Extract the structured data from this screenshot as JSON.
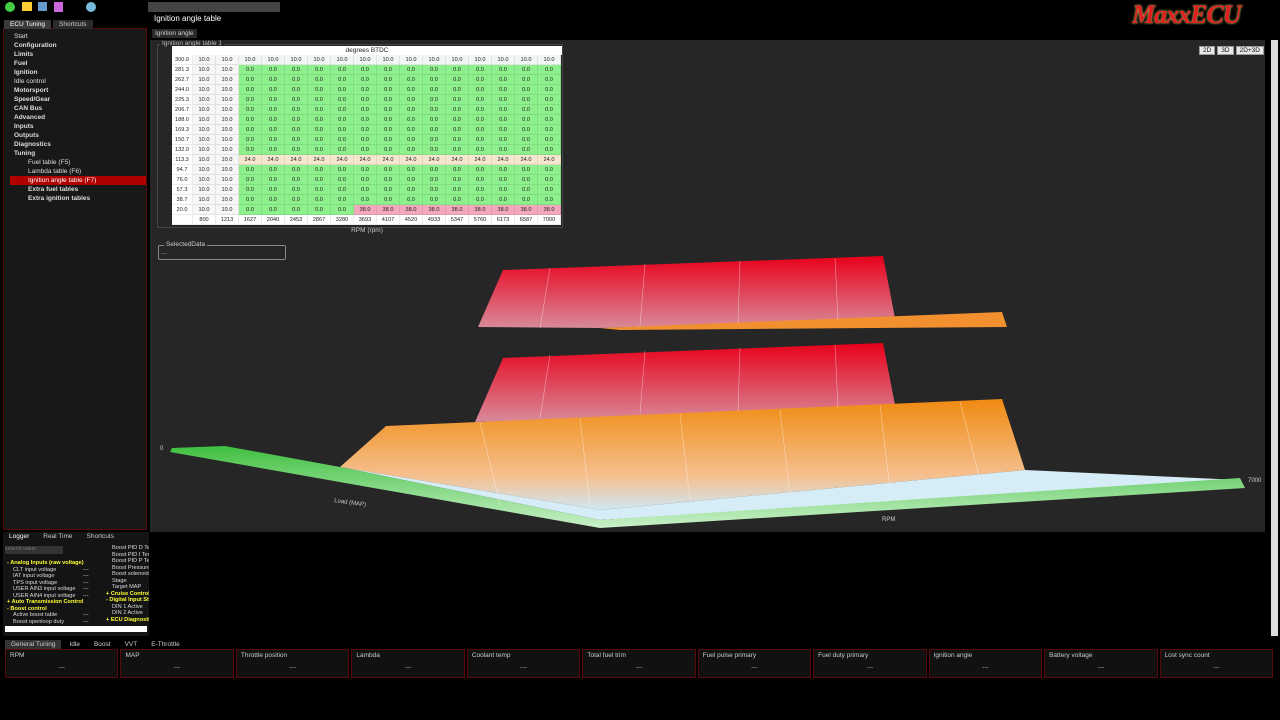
{
  "app": {
    "logo": "MaxxECU",
    "window_title": "Ignition angle table"
  },
  "left_tabs": [
    "ECU Tuning",
    "Shortcuts"
  ],
  "tree": [
    {
      "label": "Start",
      "level": 0,
      "bold": false
    },
    {
      "label": "Configuration",
      "level": 0,
      "bold": true
    },
    {
      "label": "Limits",
      "level": 0,
      "bold": true
    },
    {
      "label": "Fuel",
      "level": 0,
      "bold": true
    },
    {
      "label": "Ignition",
      "level": 0,
      "bold": true
    },
    {
      "label": "Idle control",
      "level": 0,
      "bold": false
    },
    {
      "label": "Motorsport",
      "level": 0,
      "bold": true
    },
    {
      "label": "Speed/Gear",
      "level": 0,
      "bold": true
    },
    {
      "label": "CAN Bus",
      "level": 0,
      "bold": true
    },
    {
      "label": "Advanced",
      "level": 0,
      "bold": true
    },
    {
      "label": "Inputs",
      "level": 0,
      "bold": true
    },
    {
      "label": "Outputs",
      "level": 0,
      "bold": true
    },
    {
      "label": "Diagnostics",
      "level": 0,
      "bold": true
    },
    {
      "label": "Tuning",
      "level": 0,
      "bold": true
    },
    {
      "label": "Fuel table (F5)",
      "level": 1,
      "bold": false
    },
    {
      "label": "Lambda table (F6)",
      "level": 1,
      "bold": false
    },
    {
      "label": "Ignition angle table (F7)",
      "level": 1,
      "bold": false,
      "selected": true
    },
    {
      "label": "Extra fuel tables",
      "level": 1,
      "bold": true
    },
    {
      "label": "Extra ignition tables",
      "level": 1,
      "bold": true
    }
  ],
  "main_tab": "Ignition angle",
  "group_title": "Ignition angle table 1",
  "view_buttons": [
    "2D",
    "3D",
    "2D+3D"
  ],
  "table": {
    "title": "degrees BTDC",
    "x_label": "RPM (rpm)",
    "columns": [
      "800",
      "1213",
      "1627",
      "2040",
      "2453",
      "2867",
      "3280",
      "3693",
      "4107",
      "4520",
      "4933",
      "5347",
      "5760",
      "6173",
      "6587",
      "7000"
    ],
    "rows": [
      {
        "load": "300.0",
        "values": [
          "10.0",
          "10.0",
          "10.0",
          "10.0",
          "10.0",
          "10.0",
          "10.0",
          "10.0",
          "10.0",
          "10.0",
          "10.0",
          "10.0",
          "10.0",
          "10.0",
          "10.0",
          "10.0"
        ]
      },
      {
        "load": "281.3",
        "values": [
          "10.0",
          "10.0",
          "0.0",
          "0.0",
          "0.0",
          "0.0",
          "0.0",
          "0.0",
          "0.0",
          "0.0",
          "0.0",
          "0.0",
          "0.0",
          "0.0",
          "0.0",
          "0.0"
        ]
      },
      {
        "load": "262.7",
        "values": [
          "10.0",
          "10.0",
          "0.0",
          "0.0",
          "0.0",
          "0.0",
          "0.0",
          "0.0",
          "0.0",
          "0.0",
          "0.0",
          "0.0",
          "0.0",
          "0.0",
          "0.0",
          "0.0"
        ]
      },
      {
        "load": "244.0",
        "values": [
          "10.0",
          "10.0",
          "0.0",
          "0.0",
          "0.0",
          "0.0",
          "0.0",
          "0.0",
          "0.0",
          "0.0",
          "0.0",
          "0.0",
          "0.0",
          "0.0",
          "0.0",
          "0.0"
        ]
      },
      {
        "load": "225.3",
        "values": [
          "10.0",
          "10.0",
          "0.0",
          "0.0",
          "0.0",
          "0.0",
          "0.0",
          "0.0",
          "0.0",
          "0.0",
          "0.0",
          "0.0",
          "0.0",
          "0.0",
          "0.0",
          "0.0"
        ]
      },
      {
        "load": "206.7",
        "values": [
          "10.0",
          "10.0",
          "0.0",
          "0.0",
          "0.0",
          "0.0",
          "0.0",
          "0.0",
          "0.0",
          "0.0",
          "0.0",
          "0.0",
          "0.0",
          "0.0",
          "0.0",
          "0.0"
        ]
      },
      {
        "load": "188.0",
        "values": [
          "10.0",
          "10.0",
          "0.0",
          "0.0",
          "0.0",
          "0.0",
          "0.0",
          "0.0",
          "0.0",
          "0.0",
          "0.0",
          "0.0",
          "0.0",
          "0.0",
          "0.0",
          "0.0"
        ]
      },
      {
        "load": "169.3",
        "values": [
          "10.0",
          "10.0",
          "0.0",
          "0.0",
          "0.0",
          "0.0",
          "0.0",
          "0.0",
          "0.0",
          "0.0",
          "0.0",
          "0.0",
          "0.0",
          "0.0",
          "0.0",
          "0.0"
        ]
      },
      {
        "load": "150.7",
        "values": [
          "10.0",
          "10.0",
          "0.0",
          "0.0",
          "0.0",
          "0.0",
          "0.0",
          "0.0",
          "0.0",
          "0.0",
          "0.0",
          "0.0",
          "0.0",
          "0.0",
          "0.0",
          "0.0"
        ]
      },
      {
        "load": "132.0",
        "values": [
          "10.0",
          "10.0",
          "0.0",
          "0.0",
          "0.0",
          "0.0",
          "0.0",
          "0.0",
          "0.0",
          "0.0",
          "0.0",
          "0.0",
          "0.0",
          "0.0",
          "0.0",
          "0.0"
        ]
      },
      {
        "load": "113.3",
        "values": [
          "10.0",
          "10.0",
          "24.0",
          "24.0",
          "24.0",
          "24.0",
          "24.0",
          "24.0",
          "24.0",
          "24.0",
          "24.0",
          "24.0",
          "24.0",
          "24.0",
          "24.0",
          "24.0"
        ]
      },
      {
        "load": "94.7",
        "values": [
          "10.0",
          "10.0",
          "0.0",
          "0.0",
          "0.0",
          "0.0",
          "0.0",
          "0.0",
          "0.0",
          "0.0",
          "0.0",
          "0.0",
          "0.0",
          "0.0",
          "0.0",
          "0.0"
        ]
      },
      {
        "load": "76.0",
        "values": [
          "10.0",
          "10.0",
          "0.0",
          "0.0",
          "0.0",
          "0.0",
          "0.0",
          "0.0",
          "0.0",
          "0.0",
          "0.0",
          "0.0",
          "0.0",
          "0.0",
          "0.0",
          "0.0"
        ]
      },
      {
        "load": "57.3",
        "values": [
          "10.0",
          "10.0",
          "0.0",
          "0.0",
          "0.0",
          "0.0",
          "0.0",
          "0.0",
          "0.0",
          "0.0",
          "0.0",
          "0.0",
          "0.0",
          "0.0",
          "0.0",
          "0.0"
        ]
      },
      {
        "load": "38.7",
        "values": [
          "10.0",
          "10.0",
          "0.0",
          "0.0",
          "0.0",
          "0.0",
          "0.0",
          "0.0",
          "0.0",
          "0.0",
          "0.0",
          "0.0",
          "0.0",
          "0.0",
          "0.0",
          "0.0"
        ]
      },
      {
        "load": "20.0",
        "values": [
          "10.0",
          "10.0",
          "0.0",
          "0.0",
          "0.0",
          "0.0",
          "0.0",
          "38.0",
          "38.0",
          "38.0",
          "38.0",
          "38.0",
          "38.0",
          "38.0",
          "38.0",
          "38.0"
        ]
      }
    ]
  },
  "selected_data": {
    "title": "SelectedData",
    "value": "---"
  },
  "view3d": {
    "y_axis": "Load (MAP)",
    "x_axis": "RPM",
    "x_max": "7000",
    "z_min": "0"
  },
  "logger": {
    "tabs": [
      "Logger",
      "Real Time",
      "Shortcuts"
    ],
    "search": "search value",
    "left": [
      {
        "label": "- Analog Inputs (raw voltage)",
        "header": true
      },
      {
        "label": "CLT input voltage",
        "value": "---"
      },
      {
        "label": "IAT input voltage",
        "value": "---"
      },
      {
        "label": "TPS input voltage",
        "value": "---"
      },
      {
        "label": "USER AIN3 input voltage",
        "value": "---"
      },
      {
        "label": "USER AIN4 input voltage",
        "value": "---"
      },
      {
        "label": "+ Auto Transmission Control",
        "header": true
      },
      {
        "label": "- Boost control",
        "header": true
      },
      {
        "label": "Active boost table",
        "value": "---"
      },
      {
        "label": "Boost openloop duty",
        "value": "---"
      }
    ],
    "right": [
      {
        "label": "Boost PID D Term"
      },
      {
        "label": "Boost PID I Term"
      },
      {
        "label": "Boost PID P Term"
      },
      {
        "label": "Boost Pressure"
      },
      {
        "label": "Boost solenoid duty"
      },
      {
        "label": "Stage"
      },
      {
        "label": "Target MAP"
      },
      {
        "label": "+ Cruise Control",
        "header": true
      },
      {
        "label": "- Digital Input Status",
        "header": true
      },
      {
        "label": "DIN 1 Active"
      },
      {
        "label": "DIN 2 Active"
      },
      {
        "label": "+ ECU Diagnostics",
        "header": true
      }
    ]
  },
  "bottom_tabs": [
    "General Tuning",
    "Idle",
    "Boost",
    "VVT",
    "E-Throttle"
  ],
  "gauges": [
    {
      "label": "RPM",
      "value": "---"
    },
    {
      "label": "MAP",
      "value": "---"
    },
    {
      "label": "Throttle position",
      "value": "---"
    },
    {
      "label": "Lambda",
      "value": "---"
    },
    {
      "label": "Coolant temp",
      "value": "---"
    },
    {
      "label": "Total fuel trim",
      "value": "---"
    },
    {
      "label": "Fuel pulse primary",
      "value": "---"
    },
    {
      "label": "Fuel duty primary",
      "value": "---"
    },
    {
      "label": "Ignition angle",
      "value": "---"
    },
    {
      "label": "Battery voltage",
      "value": "---"
    },
    {
      "label": "Lost sync count",
      "value": "---"
    }
  ]
}
